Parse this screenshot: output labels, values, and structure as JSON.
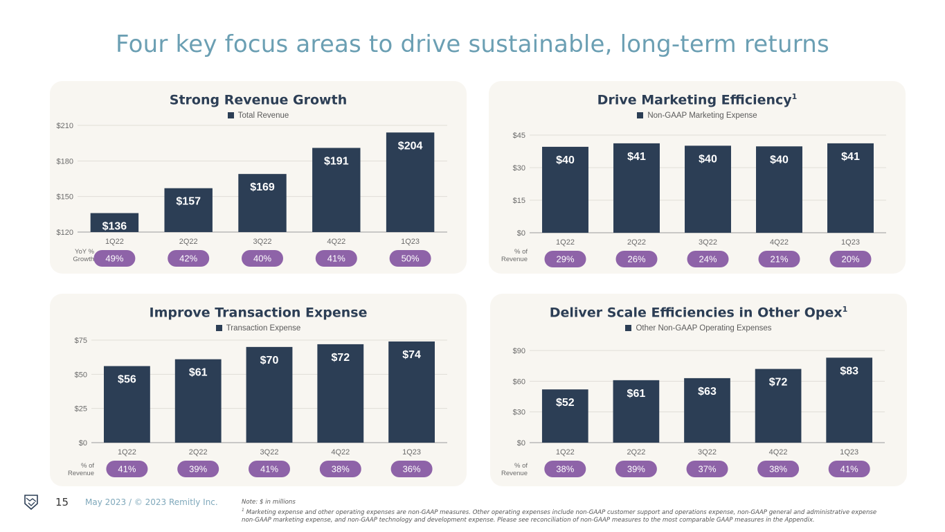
{
  "page": {
    "title": "Four key focus areas to drive sustainable, long-term returns",
    "page_number": "15",
    "date_copyright": "May 2023 / © 2023 Remitly Inc.",
    "logo_icon": "handshake-shield-icon",
    "note_line1": "Note: $ in millions",
    "footnote_marker": "1",
    "footnote_text": "Marketing expense and other operating expenses are non-GAAP measures. Other operating expenses include non-GAAP customer support and operations expense, non-GAAP general and administrative expense non-GAAP marketing expense, and non-GAAP technology and development expense. Please see reconciliation of non-GAAP measures to the most comparable GAAP measures in the Appendix."
  },
  "colors": {
    "title": "#6b9fb3",
    "bar": "#2c3e55",
    "pill": "#8e63a8",
    "panel_bg": "#f8f6f1",
    "footer_text": "#7fa8bb"
  },
  "chart_data": [
    {
      "id": "revenue",
      "type": "bar",
      "title": "Strong Revenue Growth",
      "title_superscript": "",
      "legend": "Total Revenue",
      "categories": [
        "1Q22",
        "2Q22",
        "3Q22",
        "4Q22",
        "1Q23"
      ],
      "values": [
        136,
        157,
        169,
        191,
        204
      ],
      "value_labels": [
        "$136",
        "$157",
        "$169",
        "$191",
        "$204"
      ],
      "yticks": [
        120,
        150,
        180,
        210
      ],
      "ytick_labels": [
        "$120",
        "$150",
        "$180",
        "$210"
      ],
      "ylim": [
        120,
        210
      ],
      "grid": true,
      "row_label_line1": "YoY %",
      "row_label_line2": "Growth",
      "row_values": [
        "49%",
        "42%",
        "40%",
        "41%",
        "50%"
      ]
    },
    {
      "id": "marketing",
      "type": "bar",
      "title": "Drive Marketing Efficiency",
      "title_superscript": "1",
      "legend": "Non-GAAP Marketing Expense",
      "categories": [
        "1Q22",
        "2Q22",
        "3Q22",
        "4Q22",
        "1Q23"
      ],
      "values": [
        39.6,
        41.2,
        40.1,
        39.8,
        41.2
      ],
      "value_labels": [
        "$40",
        "$41",
        "$40",
        "$40",
        "$41"
      ],
      "yticks": [
        0,
        15,
        30,
        45
      ],
      "ytick_labels": [
        "$0",
        "$15",
        "$30",
        "$45"
      ],
      "ylim": [
        0,
        45
      ],
      "grid": true,
      "row_label_line1": "% of",
      "row_label_line2": "Revenue",
      "row_values": [
        "29%",
        "26%",
        "24%",
        "21%",
        "20%"
      ]
    },
    {
      "id": "transaction",
      "type": "bar",
      "title": "Improve Transaction Expense",
      "title_superscript": "",
      "legend": "Transaction Expense",
      "categories": [
        "1Q22",
        "2Q22",
        "3Q22",
        "4Q22",
        "1Q23"
      ],
      "values": [
        56,
        61,
        70,
        72,
        74
      ],
      "value_labels": [
        "$56",
        "$61",
        "$70",
        "$72",
        "$74"
      ],
      "yticks": [
        0,
        25,
        50,
        75
      ],
      "ytick_labels": [
        "$0",
        "$25",
        "$50",
        "$75"
      ],
      "ylim": [
        0,
        75
      ],
      "grid": true,
      "row_label_line1": "% of",
      "row_label_line2": "Revenue",
      "row_values": [
        "41%",
        "39%",
        "41%",
        "38%",
        "36%"
      ]
    },
    {
      "id": "opex",
      "type": "bar",
      "title": "Deliver Scale Efficiencies in Other Opex",
      "title_superscript": "1",
      "legend": "Other Non-GAAP Operating Expenses",
      "categories": [
        "1Q22",
        "2Q22",
        "3Q22",
        "4Q22",
        "1Q23"
      ],
      "values": [
        52,
        61,
        63,
        72,
        83
      ],
      "value_labels": [
        "$52",
        "$61",
        "$63",
        "$72",
        "$83"
      ],
      "yticks": [
        0,
        30,
        60,
        90
      ],
      "ytick_labels": [
        "$0",
        "$30",
        "$60",
        "$90"
      ],
      "ylim": [
        0,
        90
      ],
      "grid": true,
      "row_label_line1": "% of",
      "row_label_line2": "Revenue",
      "row_values": [
        "38%",
        "39%",
        "37%",
        "38%",
        "41%"
      ]
    }
  ]
}
